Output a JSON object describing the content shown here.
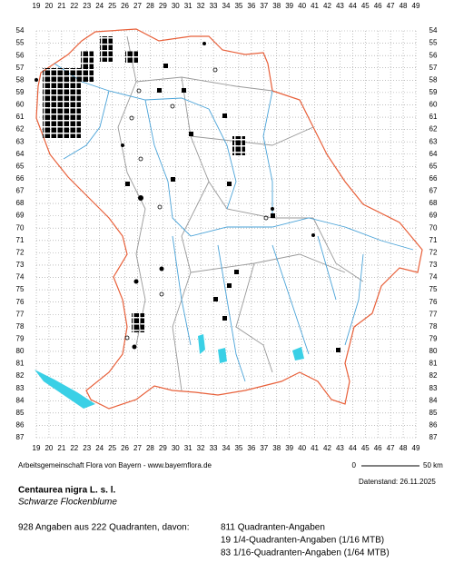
{
  "map": {
    "columns": [
      19,
      20,
      21,
      22,
      23,
      24,
      25,
      26,
      27,
      28,
      29,
      30,
      31,
      32,
      33,
      34,
      35,
      36,
      37,
      38,
      39,
      40,
      41,
      42,
      43,
      44,
      45,
      46,
      47,
      48,
      49
    ],
    "rows": [
      54,
      55,
      56,
      57,
      58,
      59,
      60,
      61,
      62,
      63,
      64,
      65,
      66,
      67,
      68,
      69,
      70,
      71,
      72,
      73,
      74,
      75,
      76,
      77,
      78,
      79,
      80,
      81,
      82,
      83,
      84,
      85,
      86,
      87
    ],
    "credit": "Arbeitsgemeinschaft Flora von Bayern - www.bayernflora.de",
    "scale_start": "0",
    "scale_end": "50 km",
    "date": "Datenstand: 26.11.2025",
    "title": "Centaurea nigra L. s. l.",
    "subtitle": "Schwarze Flockenblume",
    "summary": "928 Angaben aus 222 Quadranten, davon:",
    "breakdown": [
      "811 Quadranten-Angaben",
      "19 1/4-Quadranten-Angaben (1/16 MTB)",
      "83 1/16-Quadranten-Angaben (1/64 MTB)"
    ]
  }
}
